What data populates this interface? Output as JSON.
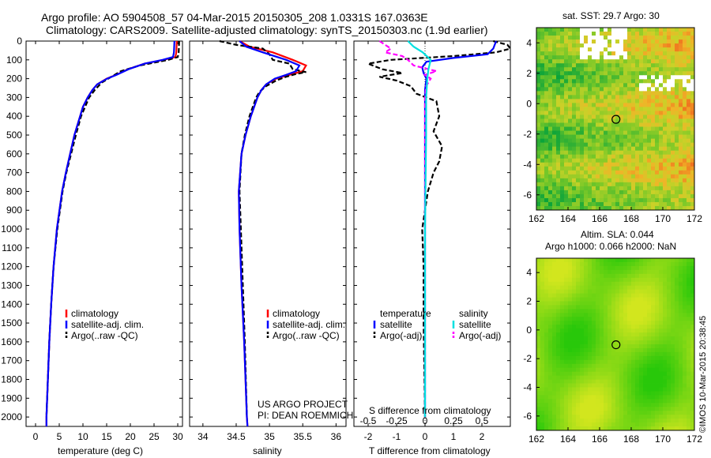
{
  "header": {
    "line1": "Argo profile: AO 5904508_57 04-Mar-2015 20150305_208 1.0331S 167.0363E",
    "line2": "Climatology: CARS2009. Satellite-adjusted climatology: synTS_20150303.nc (1.9d earlier)"
  },
  "colors": {
    "climatology": "#ff0000",
    "satellite": "#0000ff",
    "argo": "#000000",
    "sat_salinity": "#00e0e0",
    "argo_salinity": "#ff00ff"
  },
  "depth_ticks": [
    "0",
    "100",
    "200",
    "300",
    "400",
    "500",
    "600",
    "700",
    "800",
    "900",
    "1000",
    "1100",
    "1200",
    "1300",
    "1400",
    "1500",
    "1600",
    "1700",
    "1800",
    "1900",
    "2000"
  ],
  "chart_data": [
    {
      "type": "line",
      "name": "temperature profile",
      "xlabel": "temperature (deg C)",
      "ylabel": "depth",
      "xlim": [
        -2,
        31
      ],
      "ylim": [
        2050,
        0
      ],
      "xticks": [
        "0",
        "5",
        "10",
        "15",
        "20",
        "25",
        "30"
      ],
      "legend": [
        "climatology",
        "satellite-adj. clim.",
        "Argo(..raw -QC)"
      ],
      "series": [
        {
          "name": "climatology",
          "depth": [
            0,
            60,
            85,
            100,
            120,
            150,
            180,
            200,
            230,
            260,
            300,
            350,
            400,
            500,
            600,
            700,
            800,
            1000,
            1200,
            1400,
            1600,
            1800,
            2000,
            2050
          ],
          "values": [
            29.8,
            29.7,
            29.5,
            27,
            23,
            19.5,
            17,
            15,
            13,
            12,
            11,
            10,
            9.4,
            8.2,
            7.3,
            6.4,
            5.6,
            4.5,
            3.8,
            3.3,
            2.9,
            2.6,
            2.3,
            2.3
          ]
        },
        {
          "name": "satellite-adj. clim.",
          "depth": [
            0,
            60,
            85,
            100,
            120,
            150,
            180,
            200,
            230,
            260,
            300,
            350,
            400,
            500,
            600,
            700,
            800,
            1000,
            1200,
            1400,
            1600,
            1800,
            2000,
            2050
          ],
          "values": [
            29.3,
            29.2,
            29,
            26.8,
            23,
            19.6,
            17.1,
            15.1,
            13,
            12,
            11,
            10,
            9.4,
            8.2,
            7.3,
            6.4,
            5.6,
            4.5,
            3.8,
            3.3,
            2.9,
            2.6,
            2.3,
            2.3
          ]
        },
        {
          "name": "Argo(..raw -QC)",
          "depth": [
            0,
            60,
            85,
            100,
            130,
            160,
            190,
            220,
            260,
            300,
            400,
            500,
            600,
            700,
            800,
            1000,
            1200,
            1400,
            1600,
            1800,
            2000
          ],
          "values": [
            30.3,
            30.2,
            30,
            28,
            22,
            18,
            16,
            14,
            12.5,
            11.3,
            9.6,
            8.5,
            7.5,
            6.5,
            5.7,
            4.6,
            3.8,
            3.3,
            2.9,
            2.6,
            2.3
          ]
        }
      ]
    },
    {
      "type": "line",
      "name": "salinity profile",
      "xlabel": "salinity",
      "ylabel": "depth",
      "xlim": [
        33.8,
        36.15
      ],
      "ylim": [
        2050,
        0
      ],
      "xticks": [
        "34",
        "34.5",
        "35",
        "35.5",
        "36"
      ],
      "legend": [
        "climatology",
        "satellite-adj. clim.",
        "Argo(..raw -QC)"
      ],
      "series": [
        {
          "name": "climatology",
          "depth": [
            0,
            30,
            60,
            100,
            130,
            160,
            180,
            200,
            230,
            260,
            300,
            400,
            500,
            600,
            800,
            1000,
            1300,
            1600,
            2000,
            2050
          ],
          "values": [
            34.55,
            34.7,
            35.05,
            35.35,
            35.55,
            35.5,
            35.3,
            35.1,
            34.95,
            34.88,
            34.82,
            34.72,
            34.64,
            34.58,
            34.54,
            34.55,
            34.58,
            34.62,
            34.66,
            34.67
          ]
        },
        {
          "name": "satellite-adj. clim.",
          "depth": [
            0,
            30,
            60,
            100,
            130,
            160,
            180,
            200,
            230,
            260,
            300,
            400,
            500,
            600,
            800,
            1000,
            1300,
            1600,
            2000,
            2050
          ],
          "values": [
            34.55,
            34.65,
            34.9,
            35.25,
            35.45,
            35.4,
            35.25,
            35.08,
            34.95,
            34.88,
            34.82,
            34.72,
            34.64,
            34.58,
            34.54,
            34.55,
            34.58,
            34.62,
            34.66,
            34.67
          ]
        },
        {
          "name": "Argo(..raw -QC)",
          "depth": [
            0,
            20,
            40,
            70,
            100,
            120,
            150,
            165,
            175,
            190,
            210,
            240,
            270,
            300,
            400,
            500,
            600,
            800,
            1000,
            1300,
            1600,
            2000
          ],
          "values": [
            34.25,
            34.5,
            34.9,
            35.0,
            35.05,
            35.3,
            35.35,
            35.55,
            35.4,
            35.25,
            35.1,
            34.95,
            34.85,
            34.8,
            34.7,
            34.63,
            34.58,
            34.55,
            34.57,
            34.6,
            34.63,
            34.66
          ]
        }
      ]
    },
    {
      "type": "line",
      "name": "difference from climatology",
      "xlabel": "T difference from climatology",
      "x2label": "S difference from climatology",
      "xlim": [
        -2.5,
        3.0
      ],
      "ylim": [
        2050,
        0
      ],
      "xticks": [
        "-2",
        "-1",
        "0",
        "1",
        "2"
      ],
      "x2ticks": [
        "-0.5",
        "-0.25",
        "0",
        "0.25",
        "0.5"
      ],
      "legend": [
        "temperature",
        "satellite",
        "Argo(-adj)",
        "salinity",
        "satellite",
        "Argo(-adj)"
      ],
      "series": [
        {
          "name": "T satellite",
          "depth": [
            0,
            40,
            70,
            90,
            110,
            140,
            170,
            200,
            260,
            400,
            800,
            1200,
            2000
          ],
          "values": [
            2.5,
            2.4,
            2.2,
            1.0,
            0.05,
            -0.1,
            -0.05,
            0.05,
            0,
            0,
            0,
            0,
            0
          ]
        },
        {
          "name": "T Argo(-adj)",
          "depth": [
            0,
            20,
            40,
            60,
            80,
            100,
            120,
            150,
            170,
            190,
            210,
            240,
            280,
            320,
            400,
            480,
            560,
            640,
            700,
            800,
            900,
            1000,
            1200,
            1500,
            1800,
            2000
          ],
          "values": [
            2.4,
            2.9,
            3.0,
            2.5,
            1.0,
            -1.2,
            -2.0,
            -1.5,
            -0.8,
            -1.6,
            -1.0,
            -0.5,
            -0.3,
            0.4,
            0.5,
            0.3,
            0.6,
            0.5,
            0.3,
            0.1,
            0,
            -0.1,
            -0.05,
            -0.05,
            -0.02,
            0
          ]
        },
        {
          "name": "S satellite",
          "depth": [
            0,
            30,
            60,
            100,
            150,
            200,
            300,
            500,
            1000,
            2000
          ],
          "values": [
            -0.15,
            -0.1,
            -0.02,
            0.05,
            0.03,
            0.02,
            0.01,
            0.01,
            0,
            0
          ]
        },
        {
          "name": "S Argo(-adj)",
          "depth": [
            0,
            20,
            40,
            60,
            80,
            100,
            130,
            160,
            180,
            200,
            240,
            300,
            500,
            1000,
            2000
          ],
          "values": [
            -0.4,
            -0.35,
            -0.3,
            -0.35,
            -0.2,
            -0.15,
            -0.1,
            0.1,
            0.0,
            0.05,
            0.01,
            0.0,
            0.0,
            0.0,
            0.0
          ]
        }
      ]
    },
    {
      "type": "heatmap",
      "name": "sat. SST map",
      "title": "sat. SST: 29.7 Argo: 30",
      "xticks": [
        "162",
        "164",
        "166",
        "168",
        "170",
        "172"
      ],
      "yticks": [
        "4",
        "2",
        "0",
        "-2",
        "-4",
        "-6"
      ],
      "xlim": [
        162,
        172
      ],
      "ylim": [
        -7,
        5
      ],
      "marker": {
        "lon": 167.0363,
        "lat": -1.0331
      }
    },
    {
      "type": "heatmap",
      "name": "altimetry SLA map",
      "title": "Altim. SLA: 0.044",
      "subtitle": "Argo h1000: 0.066 h2000: NaN",
      "xticks": [
        "162",
        "164",
        "166",
        "168",
        "170",
        "172"
      ],
      "yticks": [
        "4",
        "2",
        "0",
        "-2",
        "-4",
        "-6"
      ],
      "xlim": [
        162,
        172
      ],
      "ylim": [
        -7,
        5
      ],
      "marker": {
        "lon": 167.0363,
        "lat": -1.0331
      }
    }
  ],
  "legend_labels": {
    "climatology": "climatology",
    "satellite_adj": "satellite-adj. clim.",
    "argo_raw": "Argo(..raw -QC)",
    "temperature": "temperature",
    "salinity": "salinity",
    "satellite": "satellite",
    "argo_adj": "Argo(-adj)"
  },
  "project": {
    "line1": "US ARGO PROJECT",
    "line2": "PI: DEAN ROEMMICH"
  },
  "credit": "©IMOS 10-Mar-2015 20:38:45"
}
